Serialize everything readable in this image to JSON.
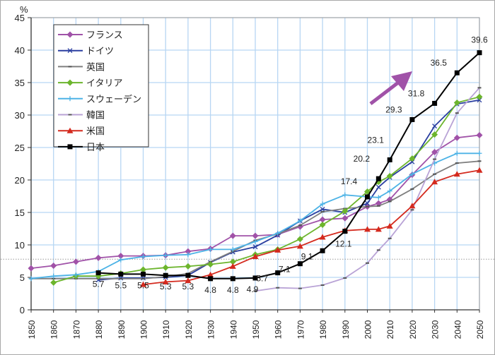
{
  "chart_data": {
    "type": "line",
    "title": "",
    "ylabel": "%",
    "xlabel": "",
    "ylim": [
      0,
      45
    ],
    "yticks": [
      0,
      5,
      10,
      15,
      20,
      25,
      30,
      35,
      40,
      45
    ],
    "xlim": [
      1850,
      2050
    ],
    "xticks": [
      "1850",
      "1860",
      "1870",
      "1880",
      "1890",
      "1900",
      "1910",
      "1920",
      "1930",
      "1940",
      "1950",
      "1960",
      "1970",
      "1980",
      "1990",
      "2000",
      "2010",
      "2020",
      "2030",
      "2040",
      "2050"
    ],
    "grid": true,
    "legend_position": "top-left",
    "reference_line": 7.8,
    "annotation_arrow_color": "#a052a8",
    "series": [
      {
        "name": "フランス",
        "color": "#a052a8",
        "marker": "diamond",
        "x": [
          1850,
          1860,
          1870,
          1880,
          1890,
          1900,
          1910,
          1920,
          1930,
          1940,
          1950,
          1960,
          1970,
          1980,
          1990,
          2000,
          2005,
          2010,
          2020,
          2030,
          2040,
          2050
        ],
        "y": [
          6.4,
          6.8,
          7.4,
          8.0,
          8.3,
          8.3,
          8.4,
          9.0,
          9.4,
          11.4,
          11.4,
          11.6,
          12.8,
          13.9,
          14.1,
          15.9,
          16.4,
          17.0,
          20.8,
          24.3,
          26.5,
          26.9
        ]
      },
      {
        "name": "ドイツ",
        "color": "#2a3fa0",
        "marker": "x",
        "x": [
          1880,
          1890,
          1900,
          1910,
          1920,
          1930,
          1940,
          1950,
          1960,
          1970,
          1980,
          1990,
          2000,
          2005,
          2010,
          2020,
          2030,
          2040,
          2050
        ],
        "y": [
          4.6,
          4.9,
          4.9,
          5.0,
          5.3,
          7.3,
          8.9,
          9.7,
          11.5,
          13.7,
          15.5,
          15.0,
          16.4,
          18.9,
          20.4,
          22.8,
          28.3,
          31.7,
          32.3
        ]
      },
      {
        "name": "英国",
        "color": "#7f7f7f",
        "marker": "dash",
        "x": [
          1850,
          1860,
          1870,
          1880,
          1890,
          1900,
          1910,
          1920,
          1930,
          1940,
          1950,
          1960,
          1970,
          1980,
          1990,
          2000,
          2005,
          2010,
          2020,
          2030,
          2040,
          2050
        ],
        "y": [
          4.8,
          4.8,
          4.8,
          4.8,
          4.8,
          4.8,
          5.1,
          5.6,
          7.4,
          9.0,
          10.7,
          11.7,
          13.0,
          15.1,
          15.6,
          15.9,
          16.0,
          16.7,
          18.6,
          20.9,
          22.6,
          22.9
        ]
      },
      {
        "name": "イタリア",
        "color": "#6cb52d",
        "marker": "diamond",
        "x": [
          1860,
          1870,
          1880,
          1890,
          1900,
          1910,
          1920,
          1930,
          1940,
          1950,
          1960,
          1970,
          1980,
          1990,
          2000,
          2005,
          2010,
          2020,
          2030,
          2040,
          2050
        ],
        "y": [
          4.2,
          5.2,
          5.2,
          5.6,
          6.2,
          6.5,
          6.7,
          7.0,
          7.4,
          8.5,
          9.3,
          10.9,
          13.1,
          15.2,
          18.2,
          19.7,
          20.6,
          23.3,
          27.0,
          31.9,
          32.8
        ]
      },
      {
        "name": "スウェーデン",
        "color": "#4db3e6",
        "marker": "plus",
        "x": [
          1850,
          1860,
          1870,
          1880,
          1890,
          1900,
          1910,
          1920,
          1930,
          1940,
          1950,
          1960,
          1970,
          1980,
          1990,
          2000,
          2005,
          2010,
          2020,
          2030,
          2040,
          2050
        ],
        "y": [
          4.8,
          5.2,
          5.4,
          5.9,
          7.7,
          8.2,
          8.4,
          8.5,
          9.3,
          9.3,
          10.5,
          11.8,
          13.7,
          16.3,
          17.7,
          17.4,
          17.3,
          18.3,
          20.9,
          22.6,
          24.1,
          24.1
        ]
      },
      {
        "name": "韓国",
        "color": "#b9a3d6",
        "marker": "dash",
        "x": [
          1950,
          1960,
          1970,
          1980,
          1990,
          2000,
          2005,
          2010,
          2020,
          2030,
          2040,
          2050
        ],
        "y": [
          2.9,
          3.4,
          3.3,
          3.8,
          4.9,
          7.2,
          9.2,
          11.0,
          15.4,
          23.2,
          30.3,
          34.2
        ]
      },
      {
        "name": "米国",
        "color": "#d42a1e",
        "marker": "triangle",
        "x": [
          1900,
          1910,
          1920,
          1930,
          1940,
          1950,
          1960,
          1970,
          1980,
          1990,
          2000,
          2005,
          2010,
          2020,
          2030,
          2040,
          2050
        ],
        "y": [
          3.9,
          4.3,
          4.5,
          5.4,
          6.7,
          8.2,
          9.2,
          9.8,
          11.2,
          12.2,
          12.4,
          12.4,
          12.9,
          16.0,
          19.7,
          20.9,
          21.5
        ]
      },
      {
        "name": "日本",
        "color": "#000000",
        "marker": "square",
        "x": [
          1880,
          1890,
          1900,
          1910,
          1920,
          1930,
          1940,
          1950,
          1960,
          1970,
          1980,
          1990,
          2000,
          2005,
          2010,
          2020,
          2030,
          2040,
          2050
        ],
        "y": [
          5.7,
          5.5,
          5.5,
          5.3,
          5.3,
          4.8,
          4.8,
          4.9,
          5.7,
          7.1,
          9.1,
          12.1,
          17.4,
          20.2,
          23.1,
          29.3,
          31.8,
          36.5,
          39.6
        ],
        "data_labels": [
          "5.7",
          "5.5",
          "5.5",
          "5.3",
          "5.3",
          "4.8",
          "4.8",
          "4.9",
          "5.7",
          "7.1",
          "9.1",
          "12.1",
          "17.4",
          "20.2",
          "23.1",
          "29.3",
          "31.8",
          "36.5",
          "39.6"
        ]
      }
    ]
  }
}
